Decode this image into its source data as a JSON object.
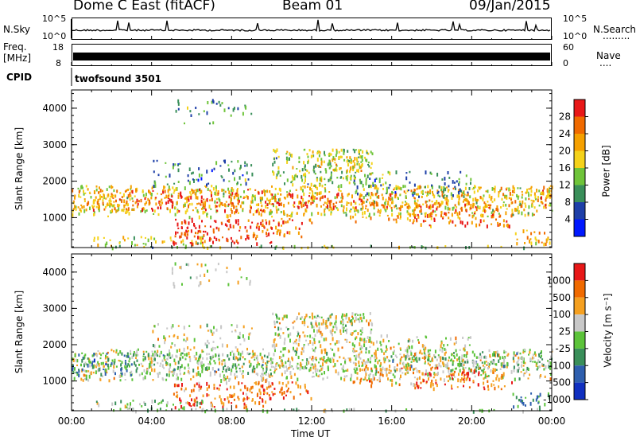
{
  "header": {
    "station": "Dome C East (fitACF)",
    "beam": "Beam 01",
    "date": "09/Jan/2015"
  },
  "top_panels": {
    "nsky_label": "N.Sky",
    "nsky_axis": [
      "10^5",
      "10^0"
    ],
    "nsearch_label": "N.Search",
    "nsearch_dots": ".........",
    "freq_label": "Freq.",
    "freq_unit": "[MHz]",
    "freq_axis": [
      "18",
      "8"
    ],
    "nave_label": "Nave",
    "nave_dots": "....",
    "nave_axis": [
      "60",
      "0"
    ],
    "cpid_label": "CPID",
    "cpid_value": "twofsound 3501"
  },
  "x_axis": {
    "label": "Time UT",
    "ticks": [
      "00:00",
      "04:00",
      "08:00",
      "12:00",
      "16:00",
      "20:00",
      "00:00"
    ]
  },
  "chart_data": [
    {
      "type": "heatmap",
      "panel": "power",
      "ylabel": "Slant Range [km]",
      "yticks": [
        1000,
        2000,
        3000,
        4000
      ],
      "ylim": [
        180,
        4500
      ],
      "xlim_hours": [
        0,
        24
      ],
      "colorbar_label": "Power [dB]",
      "colorbar_ticks": [
        "28",
        "24",
        "20",
        "16",
        "12",
        "8",
        "4"
      ],
      "colors": [
        "#0018ff",
        "#1e3fa8",
        "#3a8f5a",
        "#6fc43a",
        "#f5d21a",
        "#f5a000",
        "#f06a00",
        "#e81818"
      ]
    },
    {
      "type": "heatmap",
      "panel": "velocity",
      "ylabel": "Slant Range [km]",
      "yticks": [
        1000,
        2000,
        3000,
        4000
      ],
      "ylim": [
        180,
        4500
      ],
      "xlim_hours": [
        0,
        24
      ],
      "colorbar_label": "Velocity [m s⁻¹]",
      "colorbar_ticks": [
        "1000",
        "500",
        "100",
        "25",
        "-25",
        "-100",
        "-500",
        "-1000"
      ],
      "colors": [
        "#1030c0",
        "#2e5fae",
        "#3a8f5a",
        "#5cc33a",
        "#c8c8c8",
        "#f5a020",
        "#f06a00",
        "#e81818"
      ]
    }
  ]
}
